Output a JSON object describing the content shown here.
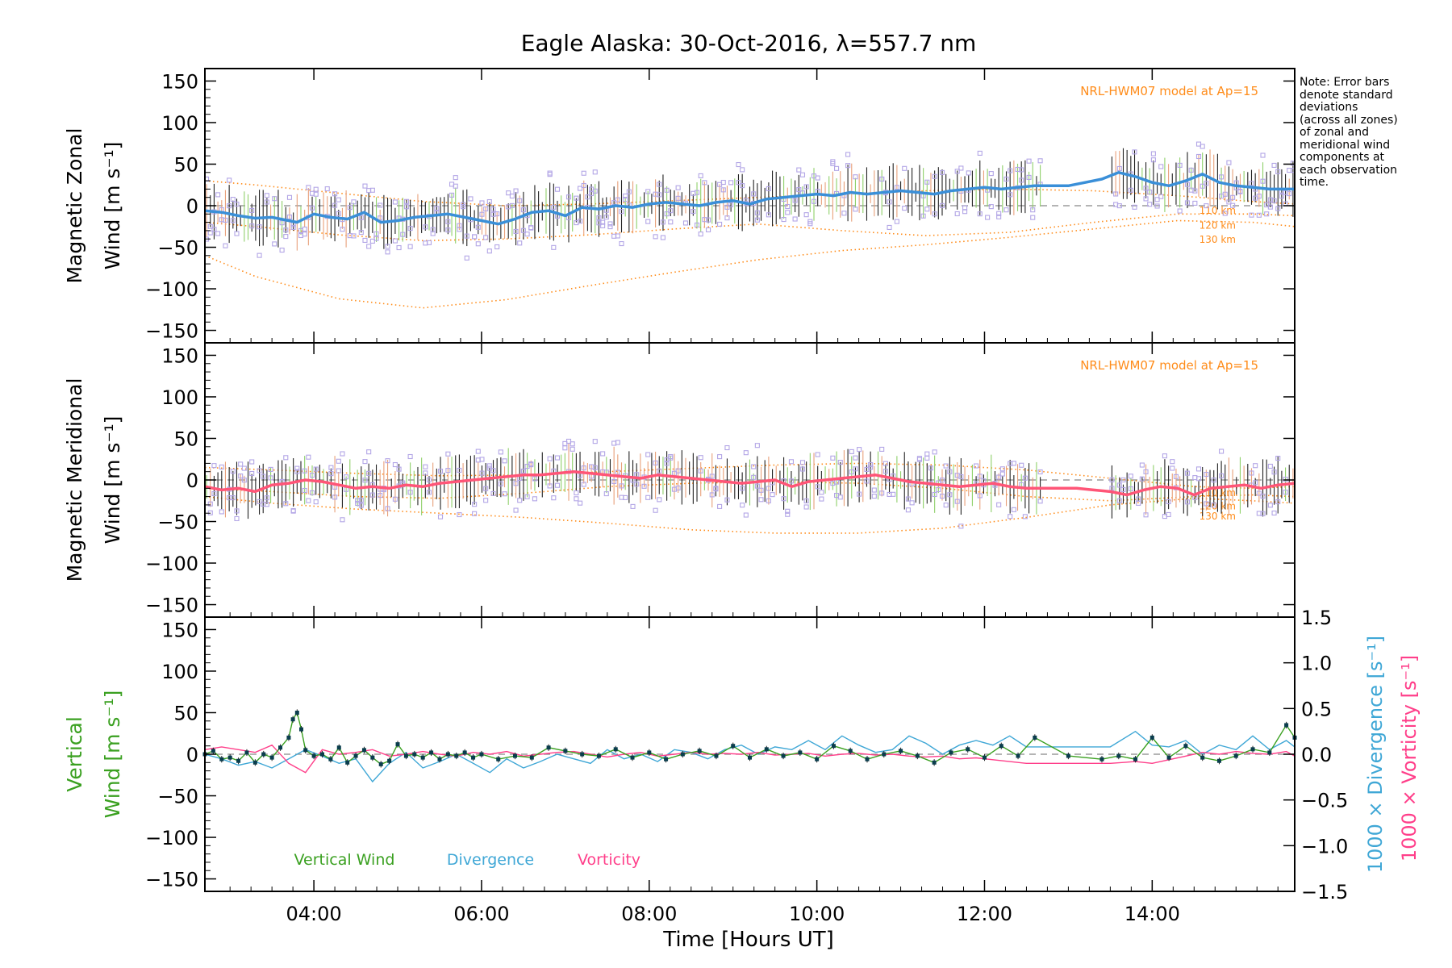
{
  "title": "Eagle Alaska: 30-Oct-2016, λ=557.7 nm",
  "note_lines": [
    "Note: Error bars",
    "denote standard",
    "deviations",
    "(across all zones)",
    "of zonal and",
    "meridional wind",
    "components at",
    "each observation",
    "time."
  ],
  "colors": {
    "zonal": "#3a8fd8",
    "zonal_gap": "#1a2fe0",
    "meridional": "#ff5577",
    "meridional_gap": "#ff2020",
    "vertical": "#3aa020",
    "divergence": "#3fa7d6",
    "vorticity": "#ff3f8a",
    "model": "#ff8c1a",
    "samples": "#b3a6e6",
    "vertical_points": "#0a3d4d"
  },
  "chart_data": [
    {
      "type": "line",
      "panel": "zonal",
      "ylabel_line1": "Magnetic Zonal",
      "ylabel_line2": "Wind",
      "ylabel_unit": "[m s⁻¹]",
      "ylim": [
        -165,
        165
      ],
      "yticks": [
        150,
        100,
        50,
        0,
        -50,
        -100,
        -150
      ],
      "model_label": "NRL-HWM07 model at Ap=15",
      "model_curve_labels": [
        "110 km",
        "120 km",
        "130 km"
      ],
      "series": [
        {
          "key": "mean",
          "x": [
            2.7,
            2.9,
            3.1,
            3.3,
            3.5,
            3.7,
            3.8,
            4.0,
            4.2,
            4.4,
            4.6,
            4.8,
            5.0,
            5.2,
            5.4,
            5.6,
            5.8,
            6.0,
            6.2,
            6.4,
            6.6,
            6.8,
            7.0,
            7.2,
            7.4,
            7.6,
            7.8,
            8.0,
            8.2,
            8.4,
            8.6,
            8.8,
            9.0,
            9.2,
            9.4,
            9.6,
            9.8,
            10.0,
            10.2,
            10.4,
            10.6,
            10.8,
            11.0,
            11.2,
            11.4,
            11.6,
            11.8,
            12.0,
            12.2,
            12.4,
            12.6,
            12.8,
            13.0,
            13.2,
            13.4,
            13.6,
            13.8,
            14.0,
            14.2,
            14.4,
            14.6,
            14.8,
            15.0,
            15.2,
            15.4,
            15.6,
            15.7
          ],
          "y": [
            -6,
            -8,
            -12,
            -15,
            -14,
            -18,
            -20,
            -10,
            -14,
            -16,
            -8,
            -20,
            -18,
            -14,
            -12,
            -10,
            -14,
            -18,
            -22,
            -16,
            -8,
            -6,
            -12,
            -2,
            -4,
            0,
            -2,
            2,
            4,
            2,
            0,
            4,
            6,
            2,
            8,
            10,
            12,
            14,
            12,
            16,
            14,
            16,
            18,
            16,
            14,
            18,
            20,
            22,
            20,
            22,
            24,
            24,
            24,
            28,
            32,
            40,
            35,
            28,
            24,
            30,
            38,
            28,
            24,
            22,
            20,
            20,
            20
          ]
        }
      ],
      "model_curves": [
        {
          "label": "110 km",
          "x": [
            2.7,
            3.3,
            4.3,
            5.3,
            6.3,
            7.3,
            8.3,
            9.3,
            10.3,
            11.3,
            12.3,
            13.3,
            14.3,
            15.2,
            15.7
          ],
          "y": [
            30,
            25,
            15,
            5,
            0,
            2,
            6,
            10,
            14,
            18,
            20,
            18,
            12,
            5,
            2
          ]
        },
        {
          "label": "120 km",
          "x": [
            2.7,
            3.3,
            4.3,
            5.3,
            6.3,
            7.3,
            8.3,
            9.3,
            10.3,
            11.3,
            12.3,
            13.3,
            14.3,
            15.2,
            15.7
          ],
          "y": [
            -20,
            -25,
            -35,
            -42,
            -40,
            -35,
            -28,
            -22,
            -30,
            -36,
            -32,
            -20,
            -10,
            -10,
            -12
          ]
        },
        {
          "label": "130 km",
          "x": [
            2.7,
            3.3,
            4.3,
            5.3,
            6.3,
            7.3,
            8.3,
            9.3,
            10.3,
            11.3,
            12.3,
            13.3,
            14.3,
            15.2,
            15.7
          ],
          "y": [
            -60,
            -85,
            -112,
            -123,
            -113,
            -96,
            -80,
            -65,
            -54,
            -47,
            -38,
            -28,
            -18,
            -20,
            -25
          ]
        }
      ]
    },
    {
      "type": "line",
      "panel": "meridional",
      "ylabel_line1": "Magnetic Meridional",
      "ylabel_line2": "Wind",
      "ylabel_unit": "[m s⁻¹]",
      "ylim": [
        -165,
        165
      ],
      "yticks": [
        150,
        100,
        50,
        0,
        -50,
        -100,
        -150
      ],
      "model_label": "NRL-HWM07 model at Ap=15",
      "model_curve_labels": [
        "110 km",
        "120 km",
        "130 km"
      ],
      "series": [
        {
          "key": "mean",
          "x": [
            2.7,
            2.9,
            3.1,
            3.3,
            3.5,
            3.7,
            3.9,
            4.1,
            4.3,
            4.5,
            4.7,
            4.9,
            5.1,
            5.3,
            5.5,
            5.7,
            5.9,
            6.1,
            6.3,
            6.5,
            6.7,
            6.9,
            7.1,
            7.3,
            7.5,
            7.7,
            7.9,
            8.1,
            8.3,
            8.5,
            8.7,
            8.9,
            9.1,
            9.3,
            9.5,
            9.7,
            9.9,
            10.1,
            10.3,
            10.5,
            10.7,
            10.9,
            11.1,
            11.3,
            11.5,
            11.7,
            11.9,
            12.1,
            12.3,
            12.5,
            12.7,
            12.9,
            13.1,
            13.3,
            13.5,
            13.7,
            13.9,
            14.1,
            14.3,
            14.5,
            14.7,
            14.9,
            15.1,
            15.3,
            15.5,
            15.7
          ],
          "y": [
            -8,
            -12,
            -10,
            -14,
            -6,
            -4,
            0,
            -2,
            -6,
            -10,
            -8,
            -10,
            -6,
            -8,
            -4,
            -2,
            0,
            2,
            4,
            6,
            6,
            8,
            10,
            8,
            6,
            4,
            2,
            6,
            4,
            2,
            0,
            -2,
            -4,
            -2,
            0,
            -8,
            -2,
            0,
            2,
            4,
            6,
            2,
            -2,
            -4,
            -6,
            -8,
            -6,
            -4,
            -8,
            -10,
            -10,
            -10,
            -10,
            -12,
            -14,
            -18,
            -12,
            -8,
            -10,
            -18,
            -10,
            -8,
            -6,
            -10,
            -6,
            -4
          ]
        }
      ],
      "model_curves": [
        {
          "label": "110 km",
          "x": [
            2.7,
            3.5,
            4.5,
            5.5,
            6.5,
            7.5,
            8.5,
            9.5,
            10.5,
            11.5,
            12.5,
            13.5,
            14.5,
            15.2,
            15.7
          ],
          "y": [
            15,
            12,
            8,
            5,
            6,
            10,
            14,
            18,
            20,
            18,
            12,
            2,
            -8,
            -10,
            -8
          ]
        },
        {
          "label": "120 km",
          "x": [
            2.7,
            3.5,
            4.5,
            5.5,
            6.5,
            7.5,
            8.5,
            9.5,
            10.5,
            11.5,
            12.5,
            13.5,
            14.5,
            15.2,
            15.7
          ],
          "y": [
            -10,
            -14,
            -20,
            -22,
            -16,
            -8,
            -4,
            -2,
            -4,
            -10,
            -20,
            -25,
            -20,
            -18,
            -20
          ]
        },
        {
          "label": "130 km",
          "x": [
            2.7,
            3.5,
            4.5,
            5.5,
            6.5,
            7.5,
            8.5,
            9.5,
            10.5,
            11.5,
            12.5,
            13.5,
            14.5,
            15.2,
            15.7
          ],
          "y": [
            -20,
            -28,
            -35,
            -40,
            -45,
            -52,
            -60,
            -64,
            -64,
            -58,
            -45,
            -30,
            -22,
            -25,
            -28
          ]
        }
      ]
    },
    {
      "type": "line",
      "panel": "vertical",
      "ylabel_line1": "Vertical",
      "ylabel_line2": "Wind",
      "ylabel_unit": "[m s⁻¹]",
      "ylim": [
        -165,
        165
      ],
      "yticks": [
        150,
        100,
        50,
        0,
        -50,
        -100,
        -150
      ],
      "y2lim": [
        -1.5,
        1.5
      ],
      "y2ticks": [
        1.5,
        1.0,
        0.5,
        0.0,
        -0.5,
        -1.0,
        -1.5
      ],
      "y2label_div": "1000 × Divergence [s⁻¹]",
      "y2label_vor": "1000 × Vorticity [s⁻¹]",
      "legend": [
        "Vertical Wind",
        "Divergence",
        "Vorticity"
      ],
      "xticks": [
        "04:00",
        "06:00",
        "08:00",
        "10:00",
        "12:00",
        "14:00"
      ],
      "xtick_values": [
        4,
        6,
        8,
        10,
        12,
        14
      ],
      "xlim": [
        2.7,
        15.7
      ],
      "xlabel": "Time [Hours UT]",
      "series": [
        {
          "key": "vertical",
          "x": [
            2.7,
            2.8,
            2.9,
            3.0,
            3.1,
            3.2,
            3.3,
            3.4,
            3.5,
            3.6,
            3.7,
            3.75,
            3.8,
            3.85,
            3.9,
            4.0,
            4.1,
            4.2,
            4.3,
            4.4,
            4.5,
            4.6,
            4.7,
            4.8,
            4.9,
            5.0,
            5.1,
            5.2,
            5.3,
            5.4,
            5.5,
            5.6,
            5.7,
            5.8,
            5.9,
            6.0,
            6.2,
            6.4,
            6.6,
            6.8,
            7.0,
            7.2,
            7.4,
            7.6,
            7.8,
            8.0,
            8.2,
            8.4,
            8.6,
            8.8,
            9.0,
            9.2,
            9.4,
            9.6,
            9.8,
            10.0,
            10.2,
            10.4,
            10.6,
            10.8,
            11.0,
            11.2,
            11.4,
            11.6,
            11.8,
            12.0,
            12.2,
            12.4,
            12.6,
            13.0,
            13.4,
            13.6,
            13.8,
            14.0,
            14.2,
            14.4,
            14.6,
            14.8,
            15.0,
            15.2,
            15.4,
            15.6,
            15.7
          ],
          "y": [
            0,
            4,
            -6,
            -4,
            -8,
            2,
            -10,
            0,
            -4,
            8,
            20,
            42,
            50,
            30,
            5,
            -2,
            0,
            -6,
            8,
            -10,
            -2,
            5,
            -4,
            -12,
            -8,
            12,
            -2,
            0,
            -4,
            2,
            -6,
            0,
            -2,
            2,
            -4,
            0,
            -6,
            -2,
            -4,
            8,
            4,
            0,
            -2,
            6,
            -4,
            2,
            -6,
            0,
            4,
            -2,
            10,
            -4,
            6,
            -2,
            2,
            -6,
            10,
            4,
            -6,
            0,
            4,
            -2,
            -10,
            2,
            6,
            -4,
            10,
            -2,
            20,
            -2,
            -6,
            -2,
            -6,
            20,
            -4,
            10,
            -4,
            -8,
            -2,
            6,
            2,
            35,
            20
          ]
        },
        {
          "key": "divergence",
          "x": [
            2.7,
            2.9,
            3.1,
            3.3,
            3.5,
            3.7,
            3.9,
            4.1,
            4.3,
            4.5,
            4.7,
            4.9,
            5.1,
            5.3,
            5.5,
            5.7,
            5.9,
            6.1,
            6.3,
            6.5,
            6.7,
            6.9,
            7.1,
            7.3,
            7.5,
            7.7,
            7.9,
            8.1,
            8.3,
            8.5,
            8.7,
            8.9,
            9.1,
            9.3,
            9.5,
            9.7,
            9.9,
            10.1,
            10.3,
            10.5,
            10.7,
            10.9,
            11.1,
            11.3,
            11.5,
            11.7,
            11.9,
            12.1,
            12.3,
            12.5,
            13.0,
            13.5,
            13.8,
            14.0,
            14.2,
            14.4,
            14.6,
            14.8,
            15.0,
            15.2,
            15.4,
            15.6,
            15.7
          ],
          "y": [
            0.0,
            -0.05,
            -0.12,
            -0.08,
            -0.15,
            -0.05,
            0.05,
            -0.02,
            -0.1,
            -0.05,
            -0.3,
            -0.1,
            0.02,
            -0.15,
            -0.08,
            0.0,
            -0.1,
            -0.2,
            -0.05,
            -0.15,
            -0.08,
            0.0,
            -0.05,
            -0.1,
            0.05,
            -0.05,
            0.0,
            -0.08,
            0.05,
            0.02,
            -0.05,
            0.05,
            0.1,
            0.0,
            0.08,
            0.05,
            0.15,
            0.05,
            0.2,
            0.1,
            0.02,
            0.05,
            0.2,
            0.12,
            0.0,
            0.1,
            0.15,
            0.1,
            0.2,
            0.08,
            0.08,
            0.08,
            0.25,
            0.1,
            0.08,
            0.15,
            0.0,
            0.1,
            0.05,
            0.2,
            0.05,
            0.15,
            0.08
          ]
        },
        {
          "key": "vorticity",
          "x": [
            2.7,
            2.9,
            3.1,
            3.3,
            3.5,
            3.7,
            3.9,
            4.1,
            4.3,
            4.5,
            4.7,
            4.9,
            5.1,
            5.3,
            5.5,
            5.7,
            5.9,
            6.1,
            6.3,
            6.5,
            6.7,
            6.9,
            7.1,
            7.3,
            7.5,
            7.7,
            7.9,
            8.1,
            8.3,
            8.5,
            8.7,
            8.9,
            9.1,
            9.3,
            9.5,
            9.7,
            9.9,
            10.1,
            10.3,
            10.5,
            10.7,
            10.9,
            11.1,
            11.3,
            11.5,
            11.7,
            11.9,
            12.1,
            12.3,
            12.5,
            13.0,
            13.5,
            13.8,
            14.0,
            14.2,
            14.4,
            14.6,
            14.8,
            15.0,
            15.2,
            15.4,
            15.6,
            15.7
          ],
          "y": [
            0.05,
            0.08,
            0.05,
            0.02,
            0.1,
            -0.1,
            -0.2,
            0.05,
            0.0,
            0.02,
            0.05,
            -0.02,
            0.0,
            0.03,
            0.0,
            -0.02,
            0.02,
            0.0,
            0.03,
            -0.02,
            0.0,
            0.02,
            0.03,
            0.0,
            -0.03,
            0.0,
            0.02,
            -0.02,
            0.0,
            0.02,
            0.0,
            0.01,
            0.0,
            0.02,
            -0.01,
            0.0,
            0.01,
            -0.02,
            0.0,
            0.01,
            -0.01,
            0.0,
            -0.02,
            -0.03,
            -0.02,
            -0.05,
            -0.04,
            -0.06,
            -0.08,
            -0.1,
            -0.1,
            -0.1,
            -0.08,
            -0.1,
            -0.06,
            -0.02,
            0.02,
            0.0,
            0.03,
            0.01,
            0.0,
            0.03,
            -0.02
          ]
        }
      ]
    }
  ]
}
